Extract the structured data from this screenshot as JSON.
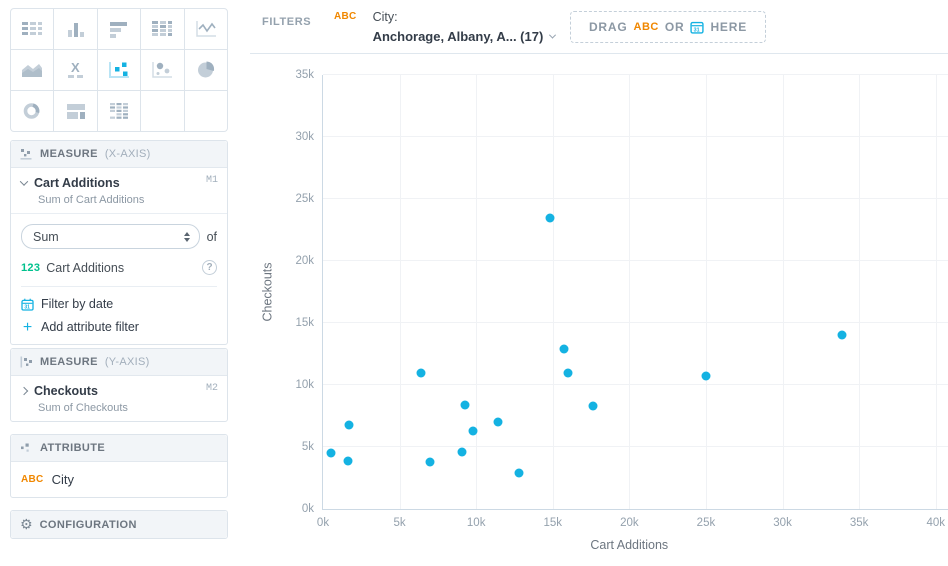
{
  "chart_picker": {
    "selected": "scatter-plot",
    "items": [
      "table",
      "column-chart",
      "bar-chart",
      "heatmap",
      "line-chart",
      "area-chart",
      "headline",
      "scatter-plot",
      "bubble-chart",
      "pie-chart",
      "donut-chart",
      "treemap",
      "pivot-table"
    ]
  },
  "sidebar": {
    "measure_x": {
      "section": "MEASURE",
      "axis": "(X-AXIS)",
      "name": "Cart Additions",
      "tag": "M1",
      "subtitle": "Sum of Cart Additions",
      "aggregation": "Sum",
      "of_label": "of",
      "item_type": "123",
      "item_name": "Cart Additions",
      "help": "?",
      "filter_by_date": "Filter by date",
      "add_attribute_filter": "Add attribute filter"
    },
    "measure_y": {
      "section": "MEASURE",
      "axis": "(Y-AXIS)",
      "name": "Checkouts",
      "tag": "M2",
      "subtitle": "Sum of Checkouts"
    },
    "attribute": {
      "section": "ATTRIBUTE",
      "item_type": "ABC",
      "item_name": "City"
    },
    "configuration": {
      "label": "CONFIGURATION"
    }
  },
  "filters": {
    "label": "FILTERS",
    "attribute": {
      "type": "ABC",
      "name": "City:",
      "value": "Anchorage, Albany, A... (17)"
    },
    "drop_zone": {
      "part1": "DRAG",
      "part2": "ABC",
      "part3": "OR",
      "part4": "HERE"
    }
  },
  "chart_data": {
    "type": "scatter",
    "title": "",
    "xlabel": "Cart Additions",
    "ylabel": "Checkouts",
    "units": "thousands",
    "xlim": [
      0,
      40.8
    ],
    "ylim": [
      0,
      35
    ],
    "x_ticks": [
      "0k",
      "5k",
      "10k",
      "15k",
      "20k",
      "25k",
      "30k",
      "35k",
      "40k"
    ],
    "y_ticks": [
      "0k",
      "5k",
      "10k",
      "15k",
      "20k",
      "25k",
      "30k",
      "35k"
    ],
    "grid": true,
    "legend": false,
    "point_color": "#14b2e2",
    "points": [
      [
        0.5,
        4.5
      ],
      [
        1.6,
        3.9
      ],
      [
        1.7,
        6.8
      ],
      [
        6.4,
        11.0
      ],
      [
        7.0,
        3.8
      ],
      [
        9.1,
        4.6
      ],
      [
        9.3,
        8.4
      ],
      [
        9.8,
        6.3
      ],
      [
        11.4,
        7.0
      ],
      [
        12.8,
        2.9
      ],
      [
        14.8,
        23.5
      ],
      [
        15.7,
        12.9
      ],
      [
        16.0,
        11.0
      ],
      [
        17.6,
        8.3
      ],
      [
        25.0,
        10.7
      ],
      [
        33.9,
        14.0
      ]
    ]
  }
}
